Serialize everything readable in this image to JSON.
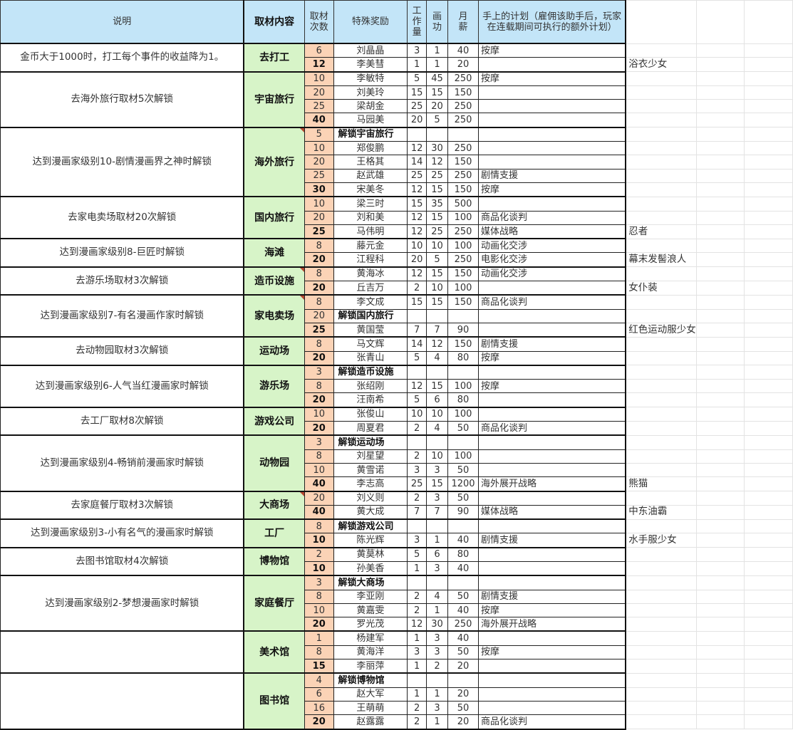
{
  "headers": {
    "description": "说明",
    "location": "取材内容",
    "count": "取材次数",
    "reward": "特殊奖励",
    "workload": "工作量",
    "art": "画功",
    "salary": "月薪",
    "plan": "手上的计划（雇佣该助手后，玩家在连载期间可执行的额外计划）"
  },
  "colors": {
    "header_bg": "#c3e5f8",
    "location_bg": "#d7f4c8",
    "count_bg": "#fbd3b6",
    "comment_marker": "#b5462f"
  },
  "groups": [
    {
      "desc": "金币大于1000时，打工每个事件的收益降为1。",
      "location": "去打工",
      "has_comment": false,
      "rows": [
        {
          "count": "6",
          "reward": "刘晶晶",
          "work": "3",
          "art": "1",
          "salary": "40",
          "plan": "按摩",
          "note": ""
        },
        {
          "count": "12",
          "reward": "李美彗",
          "work": "1",
          "art": "1",
          "salary": "20",
          "plan": "",
          "note": "浴衣少女"
        }
      ]
    },
    {
      "desc": "去海外旅行取材5次解锁",
      "location": "宇宙旅行",
      "has_comment": false,
      "rows": [
        {
          "count": "10",
          "reward": "李敏特",
          "work": "5",
          "art": "45",
          "salary": "250",
          "plan": "按摩",
          "note": ""
        },
        {
          "count": "20",
          "reward": "刘美玲",
          "work": "15",
          "art": "15",
          "salary": "150",
          "plan": "",
          "note": ""
        },
        {
          "count": "25",
          "reward": "梁胡金",
          "work": "25",
          "art": "20",
          "salary": "250",
          "plan": "",
          "note": ""
        },
        {
          "count": "40",
          "reward": "马园美",
          "work": "20",
          "art": "5",
          "salary": "250",
          "plan": "",
          "note": ""
        }
      ]
    },
    {
      "desc": "达到漫画家级别10-剧情漫画界之神时解锁",
      "location": "海外旅行",
      "has_comment": true,
      "rows": [
        {
          "count": "5",
          "reward": "解锁宇宙旅行",
          "unlock": true,
          "work": "",
          "art": "",
          "salary": "",
          "plan": "",
          "note": ""
        },
        {
          "count": "10",
          "reward": "郑俊鹏",
          "work": "12",
          "art": "30",
          "salary": "250",
          "plan": "",
          "note": ""
        },
        {
          "count": "20",
          "reward": "王格其",
          "work": "14",
          "art": "12",
          "salary": "150",
          "plan": "",
          "note": ""
        },
        {
          "count": "25",
          "reward": "赵武雄",
          "work": "25",
          "art": "25",
          "salary": "250",
          "plan": "剧情支援",
          "note": ""
        },
        {
          "count": "30",
          "reward": "宋美冬",
          "work": "12",
          "art": "15",
          "salary": "150",
          "plan": "按摩",
          "note": ""
        }
      ]
    },
    {
      "desc": "去家电卖场取材20次解锁",
      "location": "国内旅行",
      "has_comment": false,
      "rows": [
        {
          "count": "10",
          "reward": "梁三时",
          "work": "15",
          "art": "35",
          "salary": "500",
          "plan": "",
          "note": ""
        },
        {
          "count": "20",
          "reward": "刘和美",
          "work": "12",
          "art": "15",
          "salary": "100",
          "plan": "商品化谈判",
          "note": ""
        },
        {
          "count": "25",
          "reward": "马伟明",
          "work": "12",
          "art": "25",
          "salary": "250",
          "plan": "媒体战略",
          "note": "忍者"
        }
      ]
    },
    {
      "desc": "达到漫画家级别8-巨匠时解锁",
      "location": "海滩",
      "has_comment": false,
      "rows": [
        {
          "count": "8",
          "reward": "藤元金",
          "work": "10",
          "art": "10",
          "salary": "100",
          "plan": "动画化交涉",
          "note": ""
        },
        {
          "count": "20",
          "reward": "江程科",
          "work": "20",
          "art": "5",
          "salary": "250",
          "plan": "电影化交涉",
          "note": "幕末发髻浪人"
        }
      ]
    },
    {
      "desc": "去游乐场取材3次解锁",
      "location": "造币设施",
      "has_comment": true,
      "rows": [
        {
          "count": "8",
          "reward": "黄海冰",
          "work": "12",
          "art": "15",
          "salary": "150",
          "plan": "动画化交涉",
          "note": ""
        },
        {
          "count": "20",
          "reward": "丘吉万",
          "work": "2",
          "art": "10",
          "salary": "100",
          "plan": "",
          "note": "女仆装"
        }
      ]
    },
    {
      "desc": "达到漫画家级别7-有名漫画作家时解锁",
      "location": "家电卖场",
      "has_comment": true,
      "rows": [
        {
          "count": "8",
          "reward": "李文成",
          "work": "15",
          "art": "15",
          "salary": "150",
          "plan": "商品化谈判",
          "note": ""
        },
        {
          "count": "20",
          "reward": "解锁国内旅行",
          "unlock": true,
          "work": "",
          "art": "",
          "salary": "",
          "plan": "",
          "note": ""
        },
        {
          "count": "25",
          "reward": "黄国莹",
          "work": "7",
          "art": "7",
          "salary": "90",
          "plan": "",
          "note": "红色运动服少女"
        }
      ]
    },
    {
      "desc": "去动物园取材3次解锁",
      "location": "运动场",
      "has_comment": false,
      "rows": [
        {
          "count": "8",
          "reward": "马文辉",
          "work": "14",
          "art": "12",
          "salary": "150",
          "plan": "剧情支援",
          "note": ""
        },
        {
          "count": "20",
          "reward": "张青山",
          "work": "5",
          "art": "4",
          "salary": "80",
          "plan": "按摩",
          "note": ""
        }
      ]
    },
    {
      "desc": "达到漫画家级别6-人气当红漫画家时解锁",
      "location": "游乐场",
      "has_comment": false,
      "rows": [
        {
          "count": "3",
          "reward": "解锁造币设施",
          "unlock": true,
          "work": "",
          "art": "",
          "salary": "",
          "plan": "",
          "note": ""
        },
        {
          "count": "8",
          "reward": "张绍刚",
          "work": "12",
          "art": "15",
          "salary": "100",
          "plan": "按摩",
          "note": ""
        },
        {
          "count": "20",
          "reward": "汪南希",
          "work": "5",
          "art": "6",
          "salary": "80",
          "plan": "",
          "note": ""
        }
      ]
    },
    {
      "desc": "去工厂取材8次解锁",
      "location": "游戏公司",
      "has_comment": false,
      "rows": [
        {
          "count": "10",
          "reward": "张俊山",
          "work": "10",
          "art": "10",
          "salary": "100",
          "plan": "",
          "note": ""
        },
        {
          "count": "20",
          "reward": "周夏君",
          "work": "2",
          "art": "4",
          "salary": "50",
          "plan": "商品化谈判",
          "note": ""
        }
      ]
    },
    {
      "desc": "达到漫画家级别4-畅销前漫画家时解锁",
      "location": "动物园",
      "has_comment": false,
      "rows": [
        {
          "count": "3",
          "reward": "解锁运动场",
          "unlock": true,
          "work": "",
          "art": "",
          "salary": "",
          "plan": "",
          "note": ""
        },
        {
          "count": "8",
          "reward": "刘星望",
          "work": "2",
          "art": "10",
          "salary": "100",
          "plan": "",
          "note": ""
        },
        {
          "count": "10",
          "reward": "黄雪诺",
          "work": "3",
          "art": "3",
          "salary": "50",
          "plan": "",
          "note": ""
        },
        {
          "count": "40",
          "reward": "李志高",
          "work": "25",
          "art": "15",
          "salary": "1200",
          "plan": "海外展开战略",
          "note": "熊猫"
        }
      ]
    },
    {
      "desc": "去家庭餐厅取材3次解锁",
      "location": "大商场",
      "has_comment": true,
      "rows": [
        {
          "count": "20",
          "reward": "刘义则",
          "work": "2",
          "art": "3",
          "salary": "50",
          "plan": "",
          "note": ""
        },
        {
          "count": "40",
          "reward": "黄大成",
          "work": "7",
          "art": "7",
          "salary": "90",
          "plan": "媒体战略",
          "note": "中东油霸"
        }
      ]
    },
    {
      "desc": "达到漫画家级别3-小有名气的漫画家时解锁",
      "location": "工厂",
      "has_comment": false,
      "rows": [
        {
          "count": "8",
          "reward": "解锁游戏公司",
          "unlock": true,
          "work": "",
          "art": "",
          "salary": "",
          "plan": "",
          "note": ""
        },
        {
          "count": "10",
          "reward": "陈光辉",
          "work": "3",
          "art": "1",
          "salary": "40",
          "plan": "剧情支援",
          "note": "水手服少女"
        }
      ]
    },
    {
      "desc": "去图书馆取材4次解锁",
      "location": "博物馆",
      "has_comment": false,
      "rows": [
        {
          "count": "2",
          "reward": "黄莫林",
          "work": "5",
          "art": "6",
          "salary": "80",
          "plan": "",
          "note": ""
        },
        {
          "count": "10",
          "reward": "孙美香",
          "work": "1",
          "art": "3",
          "salary": "40",
          "plan": "",
          "note": ""
        }
      ]
    },
    {
      "desc": "达到漫画家级别2-梦想漫画家时解锁",
      "location": "家庭餐厅",
      "has_comment": false,
      "rows": [
        {
          "count": "3",
          "reward": "解锁大商场",
          "unlock": true,
          "work": "",
          "art": "",
          "salary": "",
          "plan": "",
          "note": ""
        },
        {
          "count": "8",
          "reward": "李亚刚",
          "work": "2",
          "art": "4",
          "salary": "50",
          "plan": "剧情支援",
          "note": ""
        },
        {
          "count": "10",
          "reward": "黄嘉雯",
          "work": "2",
          "art": "1",
          "salary": "40",
          "plan": "按摩",
          "note": ""
        },
        {
          "count": "20",
          "reward": "罗光茂",
          "work": "12",
          "art": "30",
          "salary": "250",
          "plan": "海外展开战略",
          "note": ""
        }
      ]
    },
    {
      "desc": "",
      "location": "美术馆",
      "has_comment": false,
      "rows": [
        {
          "count": "1",
          "reward": "杨建军",
          "work": "1",
          "art": "3",
          "salary": "40",
          "plan": "",
          "note": ""
        },
        {
          "count": "8",
          "reward": "黄海洋",
          "work": "3",
          "art": "3",
          "salary": "50",
          "plan": "按摩",
          "note": ""
        },
        {
          "count": "15",
          "reward": "李丽萍",
          "work": "1",
          "art": "2",
          "salary": "20",
          "plan": "",
          "note": ""
        }
      ]
    },
    {
      "desc": "",
      "location": "图书馆",
      "has_comment": false,
      "rows": [
        {
          "count": "4",
          "reward": "解锁博物馆",
          "unlock": true,
          "work": "",
          "art": "",
          "salary": "",
          "plan": "",
          "note": ""
        },
        {
          "count": "6",
          "reward": "赵大军",
          "work": "1",
          "art": "1",
          "salary": "20",
          "plan": "",
          "note": ""
        },
        {
          "count": "16",
          "reward": "王萌萌",
          "work": "2",
          "art": "3",
          "salary": "50",
          "plan": "",
          "note": ""
        },
        {
          "count": "20",
          "reward": "赵露露",
          "work": "2",
          "art": "1",
          "salary": "20",
          "plan": "商品化谈判",
          "note": ""
        }
      ]
    }
  ]
}
